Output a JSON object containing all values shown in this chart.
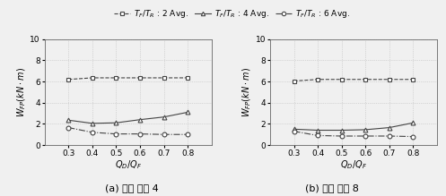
{
  "x": [
    0.3,
    0.4,
    0.5,
    0.6,
    0.7,
    0.8
  ],
  "panel_a": {
    "series1": [
      6.2,
      6.35,
      6.35,
      6.35,
      6.35,
      6.35
    ],
    "series2": [
      2.35,
      2.05,
      2.1,
      2.4,
      2.65,
      3.1
    ],
    "series3": [
      1.65,
      1.2,
      1.05,
      1.05,
      1.0,
      1.0
    ]
  },
  "panel_b": {
    "series1": [
      6.05,
      6.2,
      6.2,
      6.2,
      6.2,
      6.2
    ],
    "series2": [
      1.5,
      1.4,
      1.4,
      1.45,
      1.65,
      2.1
    ],
    "series3": [
      1.3,
      0.9,
      0.85,
      0.85,
      0.85,
      0.8
    ]
  },
  "xlim": [
    0.2,
    0.9
  ],
  "ylim": [
    0,
    10
  ],
  "yticks": [
    0,
    2,
    4,
    6,
    8,
    10
  ],
  "xticks": [
    0.3,
    0.4,
    0.5,
    0.6,
    0.7,
    0.8
  ],
  "xtick_labels": [
    "0.3",
    "0.4",
    "0.5",
    "0.6",
    "0.7",
    "0.8"
  ],
  "xlabel": "$Q_D/Q_F$",
  "ylabel": "$W_{FP}(kN\\cdot m)$",
  "legend_labels": [
    "$T_F/T_R$ : 2 Avg.",
    "$T_F/T_R$ : 4 Avg.",
    "$T_F/T_R$ : 6 Avg."
  ],
  "subtitle_a": "(a) 변형 비율 4",
  "subtitle_b": "(b) 변형 비율 8",
  "line_color": "#444444",
  "bg_color": "#f0f0f0",
  "grid_color": "#bbbbbb",
  "tick_fontsize": 6.5,
  "label_fontsize": 7.0,
  "legend_fontsize": 6.5,
  "subtitle_fontsize": 8.0
}
